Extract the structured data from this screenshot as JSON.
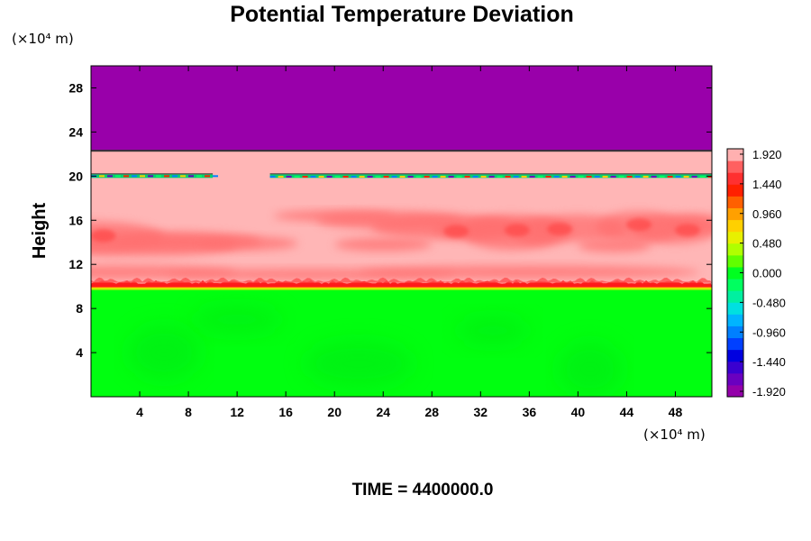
{
  "chart_data": {
    "type": "heatmap",
    "title": "Potential Temperature Deviation",
    "ylabel": "Height",
    "y_unit": "(×10⁴ m)",
    "x_unit": "(×10⁴ m)",
    "footer": "TIME = 4400000.0",
    "xlim": [
      0,
      51
    ],
    "ylim": [
      0,
      30
    ],
    "xticks": [
      4,
      8,
      12,
      16,
      20,
      24,
      28,
      32,
      36,
      40,
      44,
      48
    ],
    "xtick_labels": [
      "4",
      "8",
      "12",
      "16",
      "20",
      "24",
      "28",
      "32",
      "36",
      "40",
      "44",
      "48"
    ],
    "yticks": [
      4,
      8,
      12,
      16,
      20,
      24,
      28
    ],
    "ytick_labels": [
      "4",
      "8",
      "12",
      "16",
      "20",
      "24",
      "28"
    ],
    "colorbar": {
      "range": [
        -1.92,
        1.92
      ],
      "tick_values": [
        1.92,
        1.44,
        0.96,
        0.48,
        0.0,
        -0.48,
        -0.96,
        -1.44,
        -1.92
      ],
      "tick_labels": [
        "1.920",
        "1.440",
        "0.960",
        "0.480",
        "0.000",
        "-0.480",
        "-0.960",
        "-1.440",
        "-1.920"
      ],
      "colors": [
        "#9400aa",
        "#6a00c0",
        "#3a00d0",
        "#0000e0",
        "#0040ff",
        "#0080ff",
        "#00b4ff",
        "#00e0e0",
        "#00f0a0",
        "#00ff60",
        "#00ff20",
        "#60ff00",
        "#b0ff00",
        "#e8f000",
        "#ffd000",
        "#ffa000",
        "#ff6000",
        "#ff2000",
        "#ff3030",
        "#ff6060",
        "#ffb0b0"
      ]
    },
    "regions": [
      {
        "name": "upper layer",
        "y_range": [
          22.3,
          30
        ],
        "value": -1.92,
        "color": "#9900aa"
      },
      {
        "name": "middle layer",
        "y_range": [
          10,
          22.3
        ],
        "value": 1.92,
        "color": "#ffb6b6"
      },
      {
        "name": "lower layer",
        "y_range": [
          0,
          10
        ],
        "value": 0.0,
        "color": "#00ff10"
      }
    ],
    "features": [
      {
        "name": "thin band",
        "y": 20.0,
        "x_segments": [
          [
            0,
            10
          ],
          [
            14.7,
            51
          ]
        ]
      },
      {
        "name": "warm patches",
        "y_range": [
          13,
          17
        ],
        "value": 1.6,
        "color": "#ff6060"
      },
      {
        "name": "turbulent interface",
        "y": 10.3,
        "value": 1.44,
        "color": "#ff2020"
      }
    ],
    "grid": false,
    "legend": "colorbar right"
  }
}
